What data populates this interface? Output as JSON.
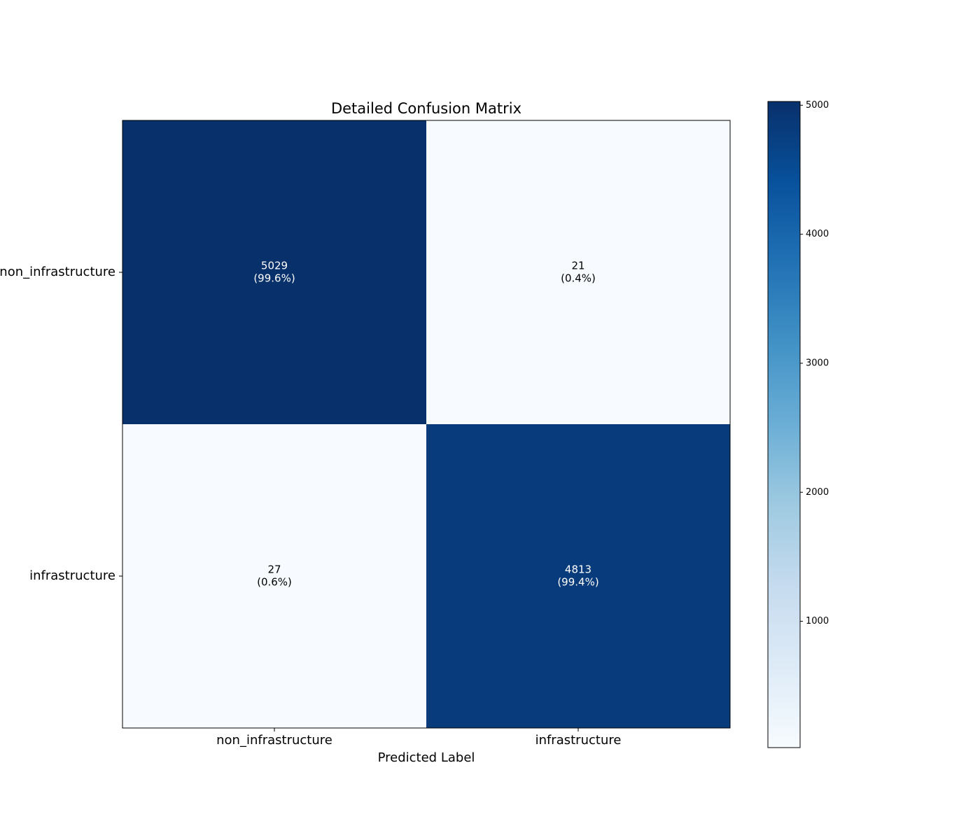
{
  "chart_data": {
    "type": "heatmap",
    "title": "Detailed Confusion Matrix",
    "x_label": "Predicted Label",
    "x_categories": [
      "non_infrastructure",
      "infrastructure"
    ],
    "y_categories": [
      "non_infrastructure",
      "infrastructure"
    ],
    "values": [
      [
        5029,
        21
      ],
      [
        27,
        4813
      ]
    ],
    "percents": [
      [
        99.6,
        0.4
      ],
      [
        0.6,
        99.4
      ]
    ],
    "percent_labels": [
      [
        "(99.6%)",
        "(0.4%)"
      ],
      [
        "(0.6%)",
        "(99.4%)"
      ]
    ],
    "colormap": "Blues",
    "clim": [
      21,
      5029
    ],
    "cticks": [
      1000,
      2000,
      3000,
      4000,
      5000
    ]
  }
}
